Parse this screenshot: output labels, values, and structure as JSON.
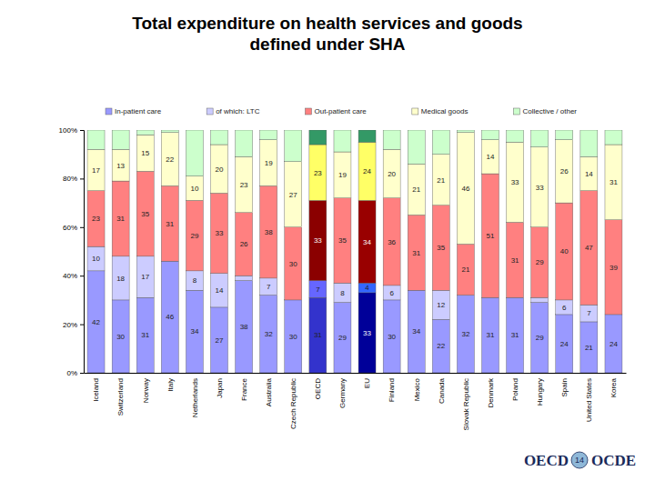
{
  "chart_data": {
    "type": "bar",
    "title": "Total expenditure on health services and goods defined under SHA",
    "stacked": true,
    "orientation": "vertical",
    "grid": false,
    "legend": "top",
    "data_labels": true,
    "ylim": [
      0,
      100
    ],
    "yticks": [
      {
        "value": 0,
        "label": "0%"
      },
      {
        "value": 20,
        "label": "20%"
      },
      {
        "value": 40,
        "label": "40%"
      },
      {
        "value": 60,
        "label": "60%"
      },
      {
        "value": 80,
        "label": "80%"
      },
      {
        "value": 100,
        "label": "100%"
      }
    ],
    "categories": [
      "Iceland",
      "Switzerland",
      "Norway",
      "Italy",
      "Netherlands",
      "Japan",
      "France",
      "Australia",
      "Czech Republic",
      "OECD",
      "Germany",
      "EU",
      "Finland",
      "Mexico",
      "Canada",
      "Slovak Republic",
      "Denmark",
      "Poland",
      "Hungary",
      "Spain",
      "United States",
      "Korea"
    ],
    "series": [
      {
        "name": "In-patient care",
        "color": "#9999ff",
        "colors": [
          "#9999ff",
          "#9999ff",
          "#9999ff",
          "#9999ff",
          "#9999ff",
          "#9999ff",
          "#9999ff",
          "#9999ff",
          "#9999ff",
          "#3333cc",
          "#9999ff",
          "#000099",
          "#9999ff",
          "#9999ff",
          "#9999ff",
          "#9999ff",
          "#9999ff",
          "#9999ff",
          "#9999ff",
          "#9999ff",
          "#9999ff",
          "#9999ff"
        ],
        "values": [
          42,
          30,
          31,
          46,
          34,
          27,
          38,
          32,
          30,
          31,
          29,
          33,
          30,
          34,
          22,
          32,
          31,
          31,
          29,
          24,
          21,
          24
        ],
        "value_labels": [
          "42",
          "30",
          "31",
          "46",
          "34",
          "27",
          "38",
          "32",
          "30",
          "31",
          "29",
          "33",
          "30",
          "34",
          "22",
          "32",
          "31",
          "31",
          "29",
          "24",
          "21",
          "24"
        ]
      },
      {
        "name": "of which: LTC",
        "color": "#ccccff",
        "colors": [
          "#ccccff",
          "#ccccff",
          "#ccccff",
          "#ccccff",
          "#ccccff",
          "#ccccff",
          "#ccccff",
          "#ccccff",
          "#ccccff",
          "#6666ff",
          "#ccccff",
          "#3366ff",
          "#ccccff",
          "#ccccff",
          "#ccccff",
          "#ccccff",
          "#ccccff",
          "#ccccff",
          "#ccccff",
          "#ccccff",
          "#ccccff",
          "#ccccff"
        ],
        "values": [
          10,
          18,
          17,
          0,
          8,
          14,
          2,
          7,
          0,
          7,
          8,
          4,
          6,
          0,
          12,
          0,
          0,
          0,
          2,
          6,
          7,
          0
        ],
        "value_labels": [
          "10",
          "18",
          "17",
          null,
          "8",
          "14",
          null,
          "7",
          null,
          "7",
          "8",
          "4",
          "6",
          null,
          "12",
          null,
          null,
          null,
          null,
          "6",
          "7",
          null
        ]
      },
      {
        "name": "Out-patient care",
        "color": "#ff8080",
        "colors": [
          "#ff8080",
          "#ff8080",
          "#ff8080",
          "#ff8080",
          "#ff8080",
          "#ff8080",
          "#ff8080",
          "#ff8080",
          "#ff8080",
          "#8b0000",
          "#ff8080",
          "#990000",
          "#ff8080",
          "#ff8080",
          "#ff8080",
          "#ff8080",
          "#ff8080",
          "#ff8080",
          "#ff8080",
          "#ff8080",
          "#ff8080",
          "#ff8080"
        ],
        "values": [
          23,
          31,
          35,
          31,
          29,
          33,
          26,
          38,
          30,
          33,
          35,
          34,
          36,
          31,
          35,
          21,
          51,
          31,
          29,
          40,
          47,
          39
        ],
        "value_labels": [
          "23",
          "31",
          "35",
          "31",
          "29",
          "33",
          "26",
          "38",
          "30",
          "33",
          "35",
          "34",
          "36",
          "31",
          "35",
          "21",
          "51",
          "31",
          "29",
          "40",
          "47",
          "39"
        ]
      },
      {
        "name": "Medical goods",
        "color": "#ffffcc",
        "colors": [
          "#ffffcc",
          "#ffffcc",
          "#ffffcc",
          "#ffffcc",
          "#ffffcc",
          "#ffffcc",
          "#ffffcc",
          "#ffffcc",
          "#ffffcc",
          "#ffff66",
          "#ffffcc",
          "#ffff66",
          "#ffffcc",
          "#ffffcc",
          "#ffffcc",
          "#ffffcc",
          "#ffffcc",
          "#ffffcc",
          "#ffffcc",
          "#ffffcc",
          "#ffffcc",
          "#ffffcc"
        ],
        "values": [
          17,
          13,
          15,
          22,
          10,
          20,
          23,
          19,
          27,
          23,
          19,
          24,
          20,
          21,
          21,
          46,
          14,
          33,
          33,
          26,
          14,
          31
        ],
        "value_labels": [
          "17",
          "13",
          "15",
          "22",
          "10",
          "20",
          "23",
          "19",
          "27",
          "23",
          "19",
          "24",
          "20",
          "21",
          "21",
          "46",
          "14",
          "33",
          "33",
          "26",
          "14",
          "31"
        ]
      },
      {
        "name": "Collective / other",
        "color": "#ccffcc",
        "colors": [
          "#ccffcc",
          "#ccffcc",
          "#ccffcc",
          "#ccffcc",
          "#ccffcc",
          "#ccffcc",
          "#ccffcc",
          "#ccffcc",
          "#ccffcc",
          "#339966",
          "#ccffcc",
          "#339966",
          "#ccffcc",
          "#ccffcc",
          "#ccffcc",
          "#ccffcc",
          "#ccffcc",
          "#ccffcc",
          "#ccffcc",
          "#ccffcc",
          "#ccffcc",
          "#ccffcc"
        ],
        "values": [
          8,
          8,
          2,
          1,
          19,
          6,
          11,
          4,
          13,
          6,
          9,
          5,
          8,
          14,
          10,
          1,
          4,
          5,
          7,
          4,
          11,
          6
        ],
        "value_labels": [
          null,
          null,
          null,
          null,
          null,
          null,
          null,
          null,
          null,
          null,
          null,
          null,
          null,
          null,
          null,
          null,
          null,
          null,
          null,
          null,
          null,
          null
        ]
      }
    ],
    "annotations": [
      "OECD",
      "14",
      "OCDE"
    ]
  }
}
